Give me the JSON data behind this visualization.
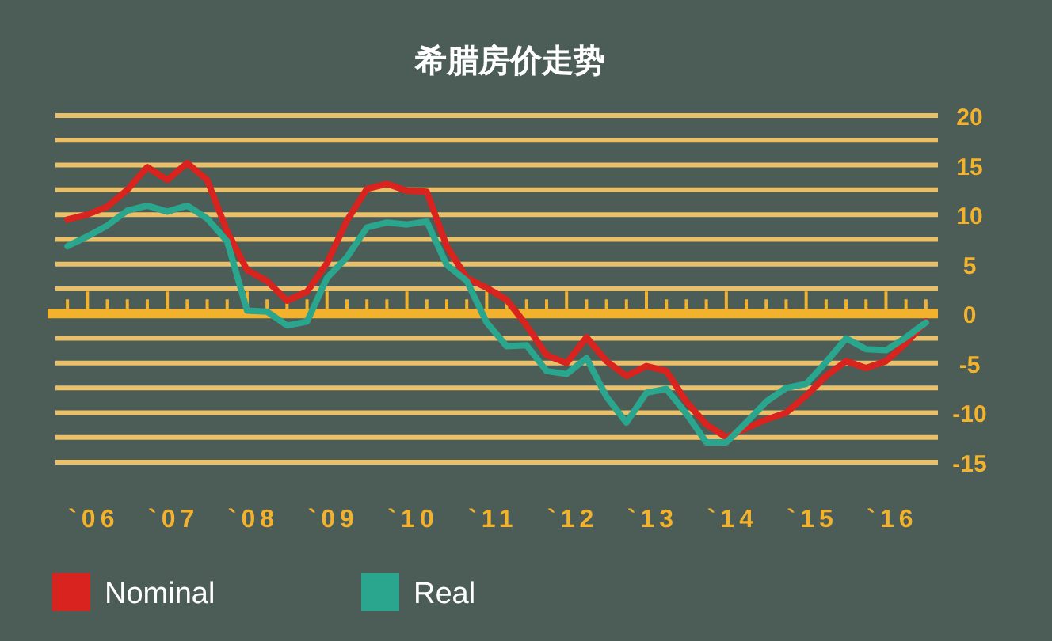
{
  "chart_data": {
    "type": "line",
    "title": "希腊房价走势",
    "categories": [
      null,
      "`06",
      null,
      null,
      null,
      "`07",
      null,
      null,
      null,
      "`08",
      null,
      null,
      null,
      "`09",
      null,
      null,
      null,
      "`10",
      null,
      null,
      null,
      "`11",
      null,
      null,
      null,
      "`12",
      null,
      null,
      null,
      "`13",
      null,
      null,
      null,
      "`14",
      null,
      null,
      null,
      "`15",
      null,
      null,
      null,
      "`16",
      null,
      null
    ],
    "ylim": [
      -15,
      20
    ],
    "yticks": [
      {
        "value": -15,
        "label": "-15"
      },
      {
        "value": -12.5,
        "label": null
      },
      {
        "value": -10,
        "label": "-10"
      },
      {
        "value": -7.5,
        "label": null
      },
      {
        "value": -5,
        "label": "-5"
      },
      {
        "value": -2.5,
        "label": null
      },
      0,
      {
        "value": 2.5,
        "label": null
      },
      5,
      {
        "value": 7.5,
        "label": null
      },
      10,
      {
        "value": 12.5,
        "label": null
      },
      15,
      {
        "value": 17.5,
        "label": null
      },
      20
    ],
    "grid": "y",
    "legend": "bottom left",
    "marker": "none",
    "line_style": "solid",
    "ref_lines": [
      {
        "axis": "y",
        "value": 0,
        "color": "#f2b22e"
      }
    ],
    "series": [
      {
        "name": "Nominal",
        "color": "#d8231e",
        "values": [
          9.5,
          10.0,
          10.8,
          12.5,
          14.8,
          13.5,
          15.2,
          13.5,
          8.3,
          4.4,
          3.3,
          1.3,
          2.2,
          5.1,
          9.4,
          12.6,
          13.1,
          12.4,
          12.3,
          6.8,
          3.6,
          2.6,
          1.4,
          -1.2,
          -4.2,
          -5.0,
          -2.4,
          -4.8,
          -6.3,
          -5.3,
          -5.8,
          -8.9,
          -11.2,
          -12.5,
          -11.6,
          -10.7,
          -10.0,
          -8.3,
          -6.3,
          -4.8,
          -5.5,
          -4.8,
          -3.0,
          -0.8
        ]
      },
      {
        "name": "Real",
        "color": "#2aa58e",
        "values": [
          6.8,
          7.8,
          8.9,
          10.4,
          10.9,
          10.3,
          10.9,
          9.6,
          7.3,
          0.3,
          0.2,
          -1.2,
          -0.8,
          3.6,
          5.7,
          8.7,
          9.2,
          9.0,
          9.3,
          4.9,
          3.3,
          -0.9,
          -3.3,
          -3.2,
          -5.8,
          -6.1,
          -4.5,
          -8.4,
          -11.0,
          -8.0,
          -7.6,
          -10.1,
          -13.0,
          -13.0,
          -11.0,
          -8.9,
          -7.5,
          -7.1,
          -4.9,
          -2.5,
          -3.6,
          -3.7,
          -2.4,
          -0.9
        ]
      }
    ]
  }
}
